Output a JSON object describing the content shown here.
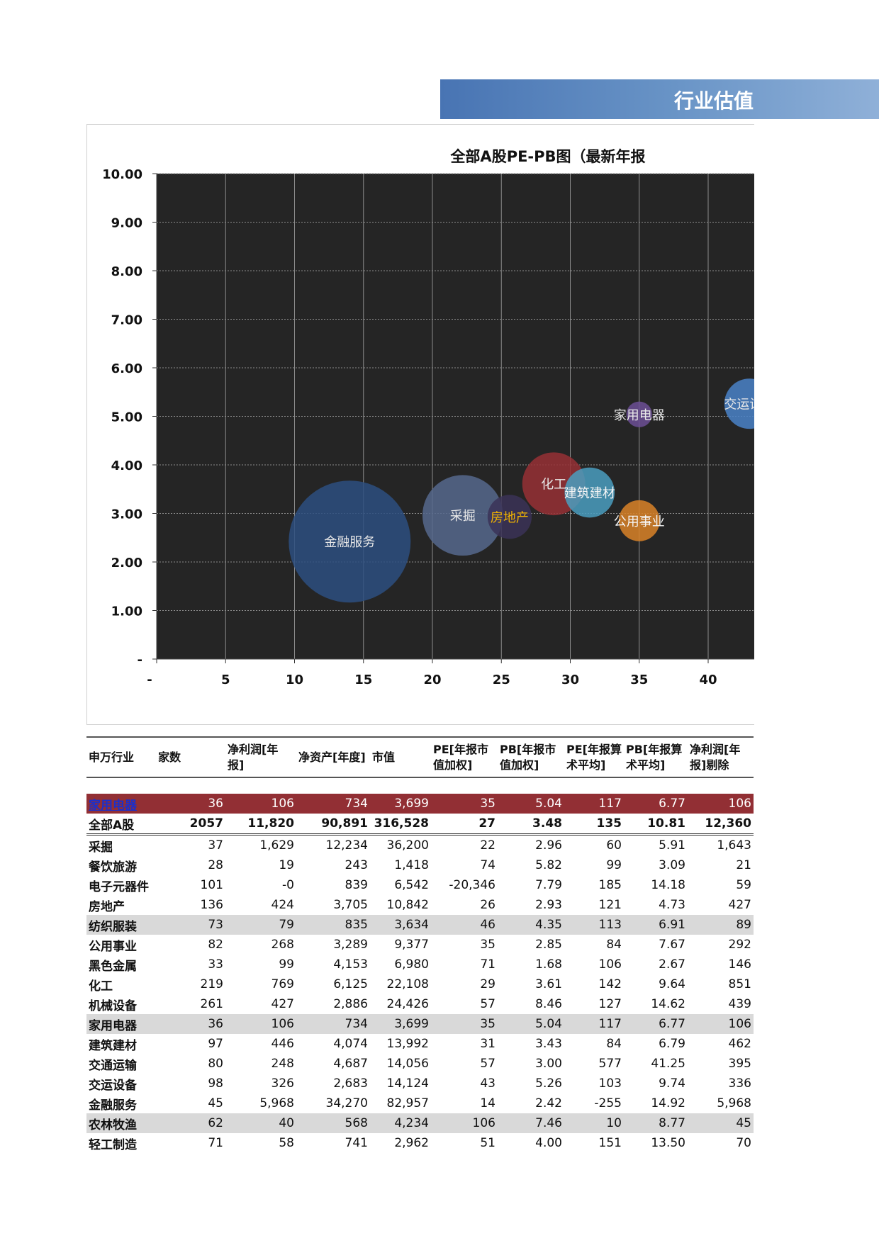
{
  "header": {
    "banner_title": "行业估值"
  },
  "chart_data": {
    "type": "bubble",
    "title": "全部A股PE-PB图（最新年报",
    "xlabel": "",
    "ylabel": "",
    "xlim": [
      0,
      45
    ],
    "ylim": [
      0,
      10
    ],
    "x_ticks": [
      "-",
      "5",
      "10",
      "15",
      "20",
      "25",
      "30",
      "35",
      "40"
    ],
    "y_ticks": [
      "-",
      "1.00",
      "2.00",
      "3.00",
      "4.00",
      "5.00",
      "6.00",
      "7.00",
      "8.00",
      "9.00",
      "10.00"
    ],
    "grid": true,
    "points": [
      {
        "label": "金融服务",
        "pe": 14,
        "pb": 2.42,
        "size": 82957,
        "color": "#2d4f80",
        "label_color": "#e8e8e8"
      },
      {
        "label": "采掘",
        "pe": 22.2,
        "pb": 2.96,
        "size": 36200,
        "color": "#56698d",
        "label_color": "#e8e8e8"
      },
      {
        "label": "房地产",
        "pe": 25.6,
        "pb": 2.93,
        "size": 10842,
        "color": "#3b3357",
        "label_color": "#f2b400"
      },
      {
        "label": "化工",
        "pe": 28.8,
        "pb": 3.61,
        "size": 22108,
        "color": "#963035",
        "label_color": "#e8e8e8"
      },
      {
        "label": "建筑建材",
        "pe": 31.4,
        "pb": 3.43,
        "size": 13992,
        "color": "#4a9dbf",
        "label_color": "#f5f5f5"
      },
      {
        "label": "公用事业",
        "pe": 35,
        "pb": 2.85,
        "size": 9377,
        "color": "#d98328",
        "label_color": "#f5f5f5"
      },
      {
        "label": "家用电器",
        "pe": 35,
        "pb": 5.04,
        "size": 3699,
        "color": "#6c4f95",
        "label_color": "#e8e8e8"
      },
      {
        "label": "交运设备",
        "pe": 43,
        "pb": 5.26,
        "size": 14124,
        "color": "#4a82c8",
        "label_color": "#e8e8e8"
      }
    ]
  },
  "table": {
    "headers": [
      "申万行业",
      "家数",
      "净利润[年报]",
      "净资产[年度]",
      "市值",
      "PE[年报市值加权]",
      "PB[年报市值加权]",
      "PE[年报算术平均]",
      "PB[年报算术平均]",
      "净利润[年报]剔除"
    ],
    "highlight_row": [
      "家用电器",
      "36",
      "106",
      "734",
      "3,699",
      "35",
      "5.04",
      "117",
      "6.77",
      "106"
    ],
    "total_row": [
      "全部A股",
      "2057",
      "11,820",
      "90,891",
      "316,528",
      "27",
      "3.48",
      "135",
      "10.81",
      "12,360"
    ],
    "rows": [
      {
        "cells": [
          "采掘",
          "37",
          "1,629",
          "12,234",
          "36,200",
          "22",
          "2.96",
          "60",
          "5.91",
          "1,643"
        ],
        "shaded": false
      },
      {
        "cells": [
          "餐饮旅游",
          "28",
          "19",
          "243",
          "1,418",
          "74",
          "5.82",
          "99",
          "3.09",
          "21"
        ],
        "shaded": false
      },
      {
        "cells": [
          "电子元器件",
          "101",
          "-0",
          "839",
          "6,542",
          "-20,346",
          "7.79",
          "185",
          "14.18",
          "59"
        ],
        "shaded": false
      },
      {
        "cells": [
          "房地产",
          "136",
          "424",
          "3,705",
          "10,842",
          "26",
          "2.93",
          "121",
          "4.73",
          "427"
        ],
        "shaded": false
      },
      {
        "cells": [
          "纺织服装",
          "73",
          "79",
          "835",
          "3,634",
          "46",
          "4.35",
          "113",
          "6.91",
          "89"
        ],
        "shaded": true
      },
      {
        "cells": [
          "公用事业",
          "82",
          "268",
          "3,289",
          "9,377",
          "35",
          "2.85",
          "84",
          "7.67",
          "292"
        ],
        "shaded": false
      },
      {
        "cells": [
          "黑色金属",
          "33",
          "99",
          "4,153",
          "6,980",
          "71",
          "1.68",
          "106",
          "2.67",
          "146"
        ],
        "shaded": false
      },
      {
        "cells": [
          "化工",
          "219",
          "769",
          "6,125",
          "22,108",
          "29",
          "3.61",
          "142",
          "9.64",
          "851"
        ],
        "shaded": false
      },
      {
        "cells": [
          "机械设备",
          "261",
          "427",
          "2,886",
          "24,426",
          "57",
          "8.46",
          "127",
          "14.62",
          "439"
        ],
        "shaded": false
      },
      {
        "cells": [
          "家用电器",
          "36",
          "106",
          "734",
          "3,699",
          "35",
          "5.04",
          "117",
          "6.77",
          "106"
        ],
        "shaded": true
      },
      {
        "cells": [
          "建筑建材",
          "97",
          "446",
          "4,074",
          "13,992",
          "31",
          "3.43",
          "84",
          "6.79",
          "462"
        ],
        "shaded": false
      },
      {
        "cells": [
          "交通运输",
          "80",
          "248",
          "4,687",
          "14,056",
          "57",
          "3.00",
          "577",
          "41.25",
          "395"
        ],
        "shaded": false
      },
      {
        "cells": [
          "交运设备",
          "98",
          "326",
          "2,683",
          "14,124",
          "43",
          "5.26",
          "103",
          "9.74",
          "336"
        ],
        "shaded": false
      },
      {
        "cells": [
          "金融服务",
          "45",
          "5,968",
          "34,270",
          "82,957",
          "14",
          "2.42",
          "-255",
          "14.92",
          "5,968"
        ],
        "shaded": false
      },
      {
        "cells": [
          "农林牧渔",
          "62",
          "40",
          "568",
          "4,234",
          "106",
          "7.46",
          "10",
          "8.77",
          "45"
        ],
        "shaded": true
      },
      {
        "cells": [
          "轻工制造",
          "71",
          "58",
          "741",
          "2,962",
          "51",
          "4.00",
          "151",
          "13.50",
          "70"
        ],
        "shaded": false
      }
    ]
  }
}
